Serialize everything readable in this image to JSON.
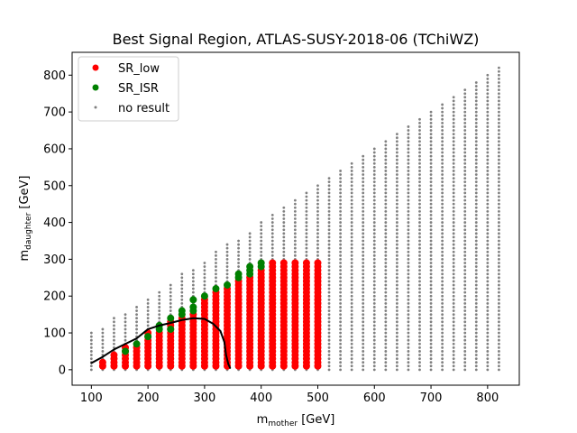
{
  "chart_data": {
    "type": "scatter",
    "title": "Best Signal Region, ATLAS-SUSY-2018-06 (TChiWZ)",
    "xlabel": {
      "base": "m",
      "sub": "mother",
      "unit": " [GeV]"
    },
    "ylabel": {
      "base": "m",
      "sub": "daughter",
      "unit": " [GeV]"
    },
    "xlim": [
      66,
      856
    ],
    "ylim": [
      -42,
      862
    ],
    "xticks": [
      100,
      200,
      300,
      400,
      500,
      600,
      700,
      800
    ],
    "yticks": [
      0,
      100,
      200,
      300,
      400,
      500,
      600,
      700,
      800
    ],
    "legend_location": "upper left",
    "grid": false,
    "series": [
      {
        "name": "SR_low",
        "color": "#ff0000",
        "marker": "large-dot"
      },
      {
        "name": "SR_ISR",
        "color": "#008000",
        "marker": "large-dot"
      },
      {
        "name": "no result",
        "color": "#808080",
        "marker": "small-dot"
      }
    ],
    "grid_description": {
      "x_start": 100,
      "x_step": 20,
      "x_end": 820,
      "y_start": 0,
      "y_step": 10
    },
    "sr_low_columns": [
      {
        "x": 120,
        "ymin": 10,
        "ymax": 20
      },
      {
        "x": 140,
        "ymin": 10,
        "ymax": 40
      },
      {
        "x": 160,
        "ymin": 10,
        "ymax": 60
      },
      {
        "x": 180,
        "ymin": 10,
        "ymax": 60
      },
      {
        "x": 200,
        "ymin": 10,
        "ymax": 100
      },
      {
        "x": 220,
        "ymin": 10,
        "ymax": 100
      },
      {
        "x": 240,
        "ymin": 10,
        "ymax": 130
      },
      {
        "x": 260,
        "ymin": 10,
        "ymax": 140
      },
      {
        "x": 280,
        "ymin": 10,
        "ymax": 150
      },
      {
        "x": 300,
        "ymin": 10,
        "ymax": 190
      },
      {
        "x": 320,
        "ymin": 10,
        "ymax": 210
      },
      {
        "x": 340,
        "ymin": 10,
        "ymax": 220
      },
      {
        "x": 360,
        "ymin": 10,
        "ymax": 240
      },
      {
        "x": 380,
        "ymin": 10,
        "ymax": 250
      },
      {
        "x": 400,
        "ymin": 10,
        "ymax": 270
      },
      {
        "x": 420,
        "ymin": 10,
        "ymax": 290
      },
      {
        "x": 440,
        "ymin": 10,
        "ymax": 290
      },
      {
        "x": 460,
        "ymin": 10,
        "ymax": 290
      },
      {
        "x": 480,
        "ymin": 10,
        "ymax": 290
      },
      {
        "x": 500,
        "ymin": 10,
        "ymax": 290
      }
    ],
    "sr_isr_points": [
      [
        160,
        50
      ],
      [
        180,
        70
      ],
      [
        200,
        90
      ],
      [
        220,
        110
      ],
      [
        220,
        120
      ],
      [
        240,
        110
      ],
      [
        240,
        140
      ],
      [
        260,
        150
      ],
      [
        260,
        160
      ],
      [
        280,
        160
      ],
      [
        280,
        170
      ],
      [
        280,
        190
      ],
      [
        300,
        200
      ],
      [
        320,
        220
      ],
      [
        340,
        230
      ],
      [
        360,
        250
      ],
      [
        360,
        260
      ],
      [
        380,
        260
      ],
      [
        380,
        270
      ],
      [
        380,
        280
      ],
      [
        400,
        280
      ],
      [
        400,
        290
      ]
    ],
    "no_result_top": [
      {
        "x": 100,
        "ymax": 100
      },
      {
        "x": 120,
        "ymax": 110
      },
      {
        "x": 140,
        "ymax": 140
      },
      {
        "x": 160,
        "ymax": 150
      },
      {
        "x": 180,
        "ymax": 170
      },
      {
        "x": 200,
        "ymax": 190
      },
      {
        "x": 220,
        "ymax": 210
      },
      {
        "x": 240,
        "ymax": 230
      },
      {
        "x": 260,
        "ymax": 260
      },
      {
        "x": 280,
        "ymax": 270
      },
      {
        "x": 300,
        "ymax": 290
      },
      {
        "x": 320,
        "ymax": 320
      },
      {
        "x": 340,
        "ymax": 340
      },
      {
        "x": 360,
        "ymax": 350
      },
      {
        "x": 380,
        "ymax": 370
      },
      {
        "x": 400,
        "ymax": 400
      },
      {
        "x": 420,
        "ymax": 420
      },
      {
        "x": 440,
        "ymax": 440
      },
      {
        "x": 460,
        "ymax": 460
      },
      {
        "x": 480,
        "ymax": 480
      },
      {
        "x": 500,
        "ymax": 500
      },
      {
        "x": 520,
        "ymax": 520
      },
      {
        "x": 540,
        "ymax": 540
      },
      {
        "x": 560,
        "ymax": 560
      },
      {
        "x": 580,
        "ymax": 580
      },
      {
        "x": 600,
        "ymax": 600
      },
      {
        "x": 620,
        "ymax": 620
      },
      {
        "x": 640,
        "ymax": 640
      },
      {
        "x": 660,
        "ymax": 660
      },
      {
        "x": 680,
        "ymax": 680
      },
      {
        "x": 700,
        "ymax": 700
      },
      {
        "x": 720,
        "ymax": 720
      },
      {
        "x": 740,
        "ymax": 740
      },
      {
        "x": 760,
        "ymax": 760
      },
      {
        "x": 780,
        "ymax": 780
      },
      {
        "x": 800,
        "ymax": 800
      },
      {
        "x": 820,
        "ymax": 820
      }
    ],
    "exclusion_curve": {
      "color": "#000000",
      "points": [
        [
          100,
          18
        ],
        [
          120,
          35
        ],
        [
          140,
          55
        ],
        [
          160,
          70
        ],
        [
          180,
          85
        ],
        [
          200,
          110
        ],
        [
          220,
          120
        ],
        [
          240,
          127
        ],
        [
          260,
          135
        ],
        [
          280,
          140
        ],
        [
          300,
          138
        ],
        [
          315,
          125
        ],
        [
          328,
          105
        ],
        [
          335,
          75
        ],
        [
          338,
          40
        ],
        [
          342,
          15
        ],
        [
          345,
          5
        ]
      ]
    }
  }
}
